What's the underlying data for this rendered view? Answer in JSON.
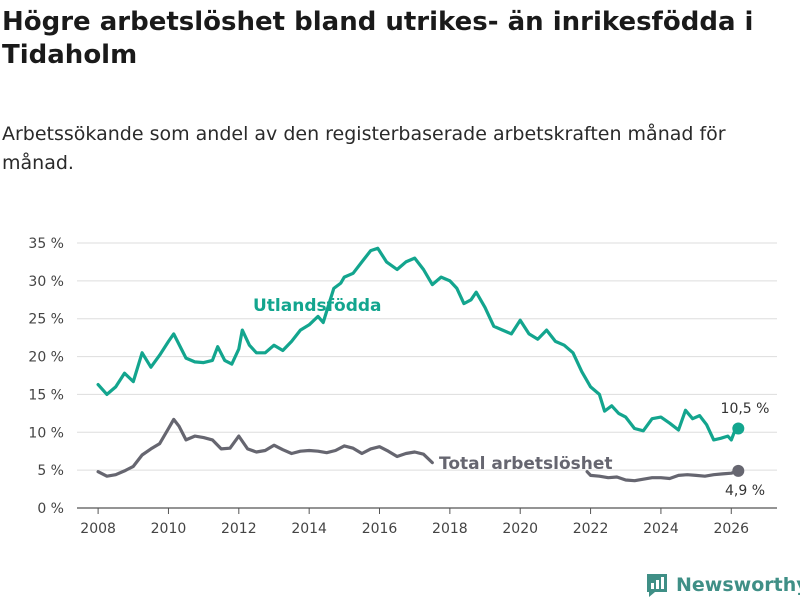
{
  "title": "Högre arbetslöshet bland utrikes- än inrikesfödda i Tidaholm",
  "subtitle": "Arbetssökande som andel av den registerbaserade arbetskraften månad för månad.",
  "brand": {
    "name": "Newsworthy",
    "icon": "newsworthy-logo-icon",
    "color": "#3f8f86"
  },
  "chart_data": {
    "type": "line",
    "title": "Högre arbetslöshet bland utrikes- än inrikesfödda i Tidaholm",
    "subtitle": "Arbetssökande som andel av den registerbaserade arbetskraften månad för månad.",
    "xlabel": "",
    "ylabel": "",
    "xlim": [
      2007.4,
      2027.3
    ],
    "ylim": [
      0,
      35
    ],
    "grid": true,
    "x_ticks": [
      2008,
      2010,
      2012,
      2014,
      2016,
      2018,
      2020,
      2022,
      2024,
      2026
    ],
    "x_tick_labels": [
      "2008",
      "2010",
      "2012",
      "2014",
      "2016",
      "2018",
      "2020",
      "2022",
      "2024",
      "2026"
    ],
    "y_ticks": [
      0,
      5,
      10,
      15,
      20,
      25,
      30,
      35
    ],
    "y_tick_labels": [
      "0 %",
      "5 %",
      "10 %",
      "15 %",
      "20 %",
      "25 %",
      "30 %",
      "35 %"
    ],
    "series": [
      {
        "name": "Utlandsfödda",
        "label": "Utlandsfödda",
        "color": "#13a58e",
        "end_label": "10,5 %",
        "end_value": 10.5,
        "points": [
          [
            2008.0,
            16.3
          ],
          [
            2008.25,
            15.0
          ],
          [
            2008.5,
            16.0
          ],
          [
            2008.75,
            17.8
          ],
          [
            2009.0,
            16.7
          ],
          [
            2009.25,
            20.5
          ],
          [
            2009.5,
            18.6
          ],
          [
            2009.75,
            20.2
          ],
          [
            2010.0,
            22.0
          ],
          [
            2010.15,
            23.0
          ],
          [
            2010.5,
            19.8
          ],
          [
            2010.75,
            19.3
          ],
          [
            2011.0,
            19.2
          ],
          [
            2011.25,
            19.5
          ],
          [
            2011.4,
            21.3
          ],
          [
            2011.6,
            19.5
          ],
          [
            2011.8,
            19.0
          ],
          [
            2012.0,
            21.0
          ],
          [
            2012.1,
            23.5
          ],
          [
            2012.3,
            21.5
          ],
          [
            2012.5,
            20.5
          ],
          [
            2012.75,
            20.5
          ],
          [
            2013.0,
            21.5
          ],
          [
            2013.25,
            20.8
          ],
          [
            2013.5,
            22.0
          ],
          [
            2013.75,
            23.5
          ],
          [
            2014.0,
            24.2
          ],
          [
            2014.25,
            25.3
          ],
          [
            2014.4,
            24.5
          ],
          [
            2014.5,
            26.0
          ],
          [
            2014.7,
            29.0
          ],
          [
            2014.9,
            29.7
          ],
          [
            2015.0,
            30.5
          ],
          [
            2015.25,
            31.0
          ],
          [
            2015.5,
            32.5
          ],
          [
            2015.75,
            34.0
          ],
          [
            2015.95,
            34.3
          ],
          [
            2016.2,
            32.5
          ],
          [
            2016.5,
            31.5
          ],
          [
            2016.75,
            32.5
          ],
          [
            2017.0,
            33.0
          ],
          [
            2017.25,
            31.5
          ],
          [
            2017.5,
            29.5
          ],
          [
            2017.75,
            30.5
          ],
          [
            2018.0,
            30.0
          ],
          [
            2018.2,
            29.0
          ],
          [
            2018.4,
            27.0
          ],
          [
            2018.6,
            27.5
          ],
          [
            2018.75,
            28.5
          ],
          [
            2019.0,
            26.5
          ],
          [
            2019.25,
            24.0
          ],
          [
            2019.5,
            23.5
          ],
          [
            2019.75,
            23.0
          ],
          [
            2020.0,
            24.8
          ],
          [
            2020.25,
            23.0
          ],
          [
            2020.5,
            22.3
          ],
          [
            2020.75,
            23.5
          ],
          [
            2021.0,
            22.0
          ],
          [
            2021.25,
            21.5
          ],
          [
            2021.5,
            20.5
          ],
          [
            2021.75,
            18.0
          ],
          [
            2022.0,
            16.0
          ],
          [
            2022.25,
            15.0
          ],
          [
            2022.4,
            12.8
          ],
          [
            2022.6,
            13.5
          ],
          [
            2022.8,
            12.5
          ],
          [
            2023.0,
            12.0
          ],
          [
            2023.25,
            10.5
          ],
          [
            2023.5,
            10.2
          ],
          [
            2023.75,
            11.8
          ],
          [
            2024.0,
            12.0
          ],
          [
            2024.25,
            11.2
          ],
          [
            2024.5,
            10.3
          ],
          [
            2024.7,
            12.9
          ],
          [
            2024.9,
            11.8
          ],
          [
            2025.1,
            12.2
          ],
          [
            2025.3,
            11.0
          ],
          [
            2025.5,
            9.0
          ],
          [
            2025.7,
            9.2
          ],
          [
            2025.9,
            9.5
          ],
          [
            2026.0,
            9.0
          ],
          [
            2026.1,
            10.2
          ],
          [
            2026.2,
            10.5
          ]
        ]
      },
      {
        "name": "Total arbetslöshet",
        "label": "Total arbetslöshet",
        "color": "#666670",
        "end_label": "4,9 %",
        "end_value": 4.9,
        "segments": [
          [
            [
              2008.0,
              4.8
            ],
            [
              2008.25,
              4.2
            ],
            [
              2008.5,
              4.4
            ],
            [
              2008.75,
              4.9
            ],
            [
              2009.0,
              5.5
            ],
            [
              2009.25,
              7.0
            ],
            [
              2009.5,
              7.8
            ],
            [
              2009.75,
              8.5
            ],
            [
              2010.0,
              10.5
            ],
            [
              2010.15,
              11.7
            ],
            [
              2010.3,
              10.8
            ],
            [
              2010.5,
              9.0
            ],
            [
              2010.75,
              9.5
            ],
            [
              2011.0,
              9.3
            ],
            [
              2011.25,
              9.0
            ],
            [
              2011.5,
              7.8
            ],
            [
              2011.75,
              7.9
            ],
            [
              2012.0,
              9.5
            ],
            [
              2012.25,
              7.8
            ],
            [
              2012.5,
              7.4
            ],
            [
              2012.75,
              7.6
            ],
            [
              2013.0,
              8.3
            ],
            [
              2013.25,
              7.7
            ],
            [
              2013.5,
              7.2
            ],
            [
              2013.75,
              7.5
            ],
            [
              2014.0,
              7.6
            ],
            [
              2014.25,
              7.5
            ],
            [
              2014.5,
              7.3
            ],
            [
              2014.75,
              7.6
            ],
            [
              2015.0,
              8.2
            ],
            [
              2015.25,
              7.9
            ],
            [
              2015.5,
              7.2
            ],
            [
              2015.75,
              7.8
            ],
            [
              2016.0,
              8.1
            ],
            [
              2016.25,
              7.5
            ],
            [
              2016.5,
              6.8
            ],
            [
              2016.75,
              7.2
            ],
            [
              2017.0,
              7.4
            ],
            [
              2017.25,
              7.1
            ],
            [
              2017.5,
              6.0
            ]
          ],
          [
            [
              2021.9,
              4.8
            ],
            [
              2022.0,
              4.3
            ],
            [
              2022.25,
              4.2
            ],
            [
              2022.5,
              4.0
            ],
            [
              2022.75,
              4.1
            ],
            [
              2023.0,
              3.7
            ],
            [
              2023.25,
              3.6
            ],
            [
              2023.5,
              3.8
            ],
            [
              2023.75,
              4.0
            ],
            [
              2024.0,
              4.0
            ],
            [
              2024.25,
              3.9
            ],
            [
              2024.5,
              4.3
            ],
            [
              2024.75,
              4.4
            ],
            [
              2025.0,
              4.3
            ],
            [
              2025.25,
              4.2
            ],
            [
              2025.5,
              4.4
            ],
            [
              2025.75,
              4.5
            ],
            [
              2026.0,
              4.6
            ],
            [
              2026.2,
              4.9
            ]
          ]
        ]
      }
    ]
  }
}
